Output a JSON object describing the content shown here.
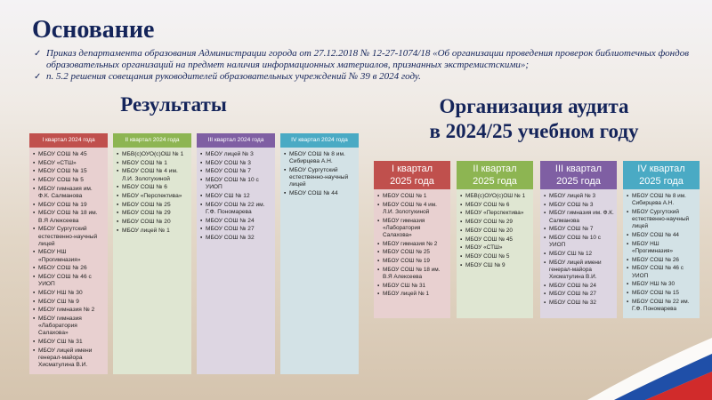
{
  "title": "Основание",
  "basis": [
    "Приказ департамента образования Администрации города от 27.12.2018 № 12-27-1074/18 «Об организации проведения проверок библиотечных фондов образовательных организаций на предмет наличия информационных материалов, признанных экстремистскими»;",
    "п. 5.2 решения совещания руководителей образовательных учреждений № 39 в 2024 году."
  ],
  "results": {
    "title": "Результаты",
    "columns": [
      {
        "header": "I квартал 2024 года",
        "color": "#c0504d",
        "bg": "#e8d0d0",
        "items": [
          "МБОУ СОШ № 45",
          "МБОУ «СТШ»",
          "МБОУ СОШ № 15",
          "МБОУ СОШ № 5",
          "МБОУ гимназия им. Ф.К. Салманова",
          "МБОУ СОШ № 19",
          "МБОУ СОШ № 18 им. В.Я Алексеева",
          "МБОУ Сургутский естественно-научный лицей",
          "МБОУ НШ «Прогимназия»",
          "МБОУ СОШ № 26",
          "МБОУ СОШ № 46 с УИОП",
          "МБОУ НШ № 30",
          "МБОУ СШ № 9",
          "МБОУ гимназия № 2",
          "МБОУ гимназия «Лаборатория Салахова»",
          "МБОУ СШ № 31",
          "МБОУ лицей имени генерал-майора Хисматулина В.И."
        ]
      },
      {
        "header": "II квартал 2024 года",
        "color": "#8db552",
        "bg": "#dfe6d2",
        "items": [
          "МБВ(с)ОУО(с)ОШ № 1",
          "МБОУ СОШ № 1",
          "МБОУ СОШ № 4 им. Л.И. Золотухиной",
          "МБОУ СОШ № 6",
          "МБОУ «Перспектива»",
          "МБОУ СОШ № 25",
          "МБОУ СОШ № 29",
          "МБОУ СОШ № 20",
          "МБОУ лицей № 1"
        ]
      },
      {
        "header": "III квартал 2024 года",
        "color": "#7f5fa3",
        "bg": "#ddd6e2",
        "items": [
          "МБОУ лицей № 3",
          "МБОУ СОШ № 3",
          "МБОУ СОШ № 7",
          "МБОУ СОШ № 10 с УИОП",
          "МБОУ СШ № 12",
          "МБОУ СОШ № 22 им. Г.Ф. Пономарева",
          "МБОУ СОШ № 24",
          "МБОУ СОШ № 27",
          "МБОУ СОШ № 32"
        ]
      },
      {
        "header": "IV квартал 2024 года",
        "color": "#4aaac4",
        "bg": "#d3e2e6",
        "items": [
          "МБОУ СОШ № 8 им. Сибирцева А.Н.",
          "МБОУ Сургутский естественно-научный лицей",
          "МБОУ СОШ № 44"
        ]
      }
    ]
  },
  "audit": {
    "title_line1": "Организация аудита",
    "title_line2": "в 2024/25 учебном году",
    "columns": [
      {
        "header": "I квартал 2025 года",
        "color": "#c0504d",
        "bg": "#e8d0d0",
        "items": [
          "МБОУ СОШ № 1",
          "МБОУ СОШ № 4 им. Л.И. Золотухиной",
          "МБОУ гимназия «Лаборатория Салахова»",
          "МБОУ гимназия № 2",
          "МБОУ СОШ № 25",
          "МБОУ СОШ № 19",
          "МБОУ СОШ № 18 им. В.Я Алексеева",
          "МБОУ СШ № 31",
          "МБОУ лицей № 1"
        ]
      },
      {
        "header": "II квартал 2025 года",
        "color": "#8db552",
        "bg": "#dfe6d2",
        "items": [
          "МБВ(с)ОУО(с)ОШ № 1",
          "МБОУ СОШ № 6",
          "МБОУ «Перспектива»",
          "МБОУ СОШ № 29",
          "МБОУ СОШ № 20",
          "МБОУ СОШ № 45",
          "МБОУ «СТШ»",
          "МБОУ СОШ № 5",
          "МБОУ СШ № 9"
        ]
      },
      {
        "header": "III квартал 2025 года",
        "color": "#7f5fa3",
        "bg": "#ddd6e2",
        "items": [
          "МБОУ лицей № 3",
          "МБОУ СОШ № 3",
          "МБОУ гимназия им. Ф.К. Салманова",
          "МБОУ СОШ № 7",
          "МБОУ СОШ № 10 с УИОП",
          "МБОУ СШ № 12",
          "МБОУ лицей имени генерал-майора Хисматулина В.И.",
          "МБОУ СОШ № 24",
          "МБОУ СОШ № 27",
          "МБОУ СОШ № 32"
        ]
      },
      {
        "header": "IV квартал 2025 года",
        "color": "#4aaac4",
        "bg": "#d3e2e6",
        "items": [
          "МБОУ СОШ № 8 им. Сибирцева А.Н.",
          "МБОУ Сургутский естественно-научный лицей",
          "МБОУ СОШ № 44",
          "МБОУ НШ «Прогимназия»",
          "МБОУ СОШ № 26",
          "МБОУ СОШ № 46 с УИОП",
          "МБОУ НШ № 30",
          "МБОУ СОШ № 15",
          "МБОУ СОШ № 22 им. Г.Ф. Пономарева"
        ]
      }
    ]
  }
}
